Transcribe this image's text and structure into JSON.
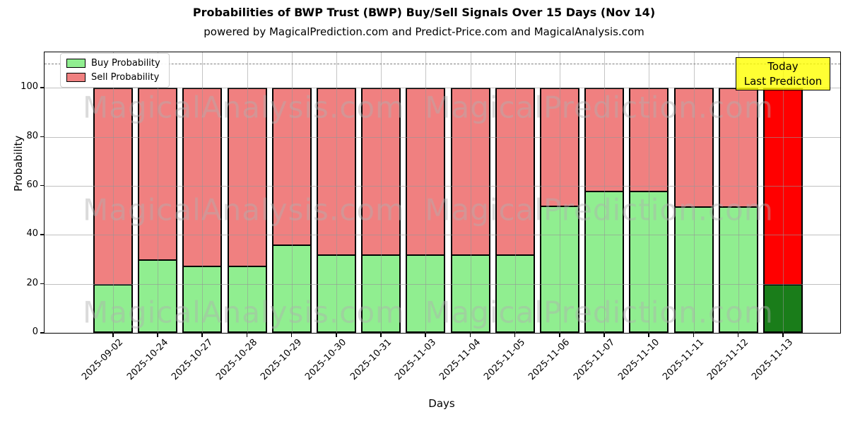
{
  "title": "Probabilities of BWP Trust (BWP) Buy/Sell Signals Over 15 Days (Nov 14)",
  "subtitle": "powered by MagicalPrediction.com and Predict-Price.com and MagicalAnalysis.com",
  "legend": {
    "items": [
      {
        "label": "Buy Probability",
        "color": "#90EE90"
      },
      {
        "label": "Sell Probability",
        "color": "#F08080"
      }
    ]
  },
  "annotation": {
    "line1": "Today",
    "line2": "Last Prediction",
    "bg_color": "#FFFF00"
  },
  "watermarks": {
    "left_text": "MagicalAnalysis.com",
    "right_text": "MagicalPrediction.com"
  },
  "axes": {
    "xlabel": "Days",
    "ylabel": "Probability"
  },
  "chart_data": {
    "type": "bar",
    "stacked": true,
    "title": "Probabilities of BWP Trust (BWP) Buy/Sell Signals Over 15 Days (Nov 14)",
    "xlabel": "Days",
    "ylabel": "Probability",
    "ylim": [
      0,
      114.5
    ],
    "yticks": [
      0,
      20,
      40,
      60,
      80,
      100
    ],
    "grid": true,
    "legend_position": "upper left",
    "dashed_hline": 110,
    "categories": [
      "2025-09-02",
      "2025-10-24",
      "2025-10-27",
      "2025-10-28",
      "2025-10-29",
      "2025-10-30",
      "2025-10-31",
      "2025-11-03",
      "2025-11-04",
      "2025-11-05",
      "2025-11-06",
      "2025-11-07",
      "2025-11-10",
      "2025-11-11",
      "2025-11-12",
      "2025-11-13"
    ],
    "series": [
      {
        "name": "Buy Probability",
        "color": "#90EE90",
        "values": [
          20,
          30,
          27.5,
          27.5,
          36,
          32,
          32,
          32,
          32,
          32,
          52,
          58,
          58,
          51.5,
          51.5,
          20
        ]
      },
      {
        "name": "Sell Probability",
        "color": "#F08080",
        "values": [
          80,
          70,
          72.5,
          72.5,
          64,
          68,
          68,
          68,
          68,
          68,
          48,
          42,
          42,
          48.5,
          48.5,
          80
        ]
      }
    ],
    "highlight_last_bar": {
      "buy_color": "#1a7d1a",
      "sell_color": "#ff0000"
    }
  }
}
